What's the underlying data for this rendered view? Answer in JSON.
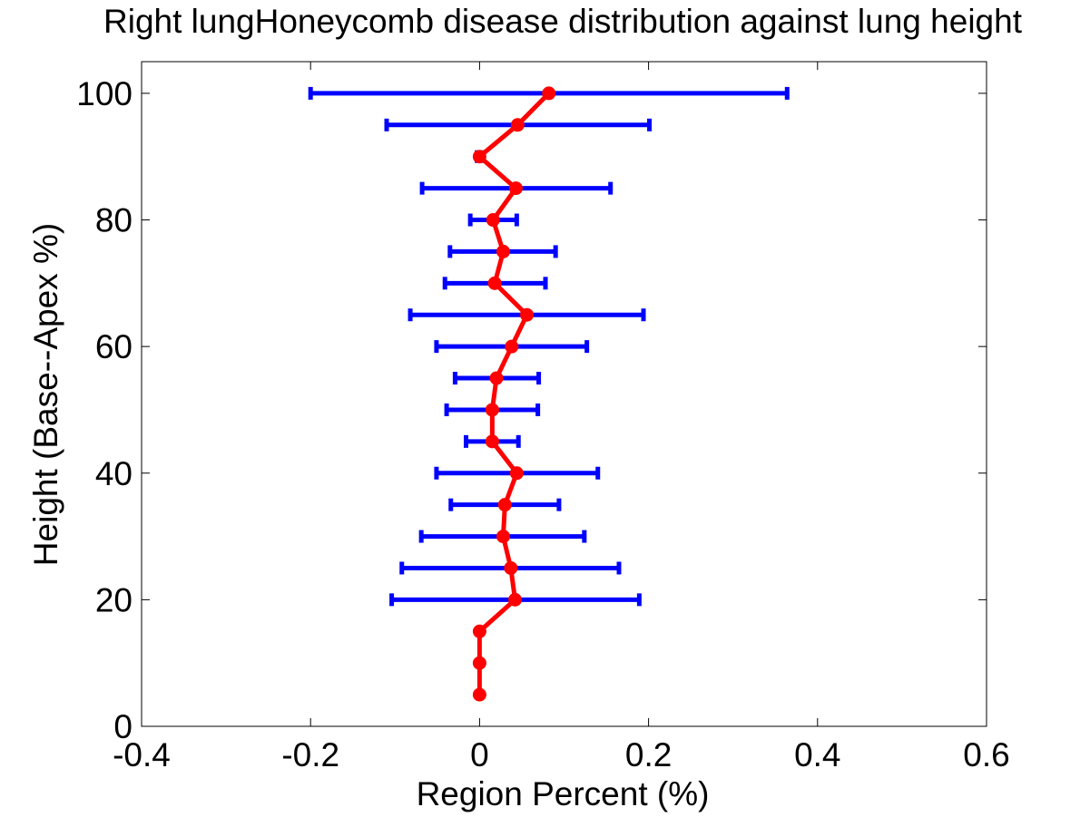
{
  "chart_data": {
    "type": "line",
    "title": "Right lungHoneycomb disease distribution against lung height",
    "xlabel": "Region Percent (%)",
    "ylabel": "Height (Base--Apex %)",
    "xlim": [
      -0.4,
      0.6
    ],
    "ylim": [
      0,
      105
    ],
    "x_ticks": [
      "-0.4",
      "-0.2",
      "0",
      "0.2",
      "0.4",
      "0.6"
    ],
    "x_tick_values": [
      -0.4,
      -0.2,
      0,
      0.2,
      0.4,
      0.6
    ],
    "y_ticks": [
      "0",
      "20",
      "40",
      "60",
      "80",
      "100"
    ],
    "y_tick_values": [
      0,
      20,
      40,
      60,
      80,
      100
    ],
    "grid": false,
    "legend": "none",
    "colors": {
      "mean_line": "#ff0000",
      "error_bars": "#0000ff"
    },
    "series": [
      {
        "style": "line-with-markers",
        "points": [
          {
            "y": 5,
            "x": 0.0
          },
          {
            "y": 10,
            "x": 0.0
          },
          {
            "y": 15,
            "x": 0.0
          },
          {
            "y": 20,
            "x": 0.042
          },
          {
            "y": 25,
            "x": 0.037
          },
          {
            "y": 30,
            "x": 0.028
          },
          {
            "y": 35,
            "x": 0.03
          },
          {
            "y": 40,
            "x": 0.044
          },
          {
            "y": 45,
            "x": 0.015
          },
          {
            "y": 50,
            "x": 0.015
          },
          {
            "y": 55,
            "x": 0.02
          },
          {
            "y": 60,
            "x": 0.038
          },
          {
            "y": 65,
            "x": 0.056
          },
          {
            "y": 70,
            "x": 0.018
          },
          {
            "y": 75,
            "x": 0.028
          },
          {
            "y": 80,
            "x": 0.016
          },
          {
            "y": 85,
            "x": 0.043
          },
          {
            "y": 90,
            "x": 0.0
          },
          {
            "y": 95,
            "x": 0.045
          },
          {
            "y": 100,
            "x": 0.082
          }
        ]
      }
    ],
    "error_bars": [
      {
        "y": 20,
        "xmin": -0.104,
        "xmax": 0.189
      },
      {
        "y": 25,
        "xmin": -0.092,
        "xmax": 0.165
      },
      {
        "y": 30,
        "xmin": -0.069,
        "xmax": 0.124
      },
      {
        "y": 35,
        "xmin": -0.034,
        "xmax": 0.094
      },
      {
        "y": 40,
        "xmin": -0.051,
        "xmax": 0.14
      },
      {
        "y": 45,
        "xmin": -0.016,
        "xmax": 0.046
      },
      {
        "y": 50,
        "xmin": -0.039,
        "xmax": 0.069
      },
      {
        "y": 55,
        "xmin": -0.029,
        "xmax": 0.07
      },
      {
        "y": 60,
        "xmin": -0.051,
        "xmax": 0.127
      },
      {
        "y": 65,
        "xmin": -0.082,
        "xmax": 0.194
      },
      {
        "y": 70,
        "xmin": -0.041,
        "xmax": 0.078
      },
      {
        "y": 75,
        "xmin": -0.035,
        "xmax": 0.09
      },
      {
        "y": 80,
        "xmin": -0.011,
        "xmax": 0.044
      },
      {
        "y": 85,
        "xmin": -0.068,
        "xmax": 0.155
      },
      {
        "y": 90,
        "xmin": -0.003,
        "xmax": 0.003
      },
      {
        "y": 95,
        "xmin": -0.11,
        "xmax": 0.201
      },
      {
        "y": 100,
        "xmin": -0.2,
        "xmax": 0.364
      }
    ]
  }
}
